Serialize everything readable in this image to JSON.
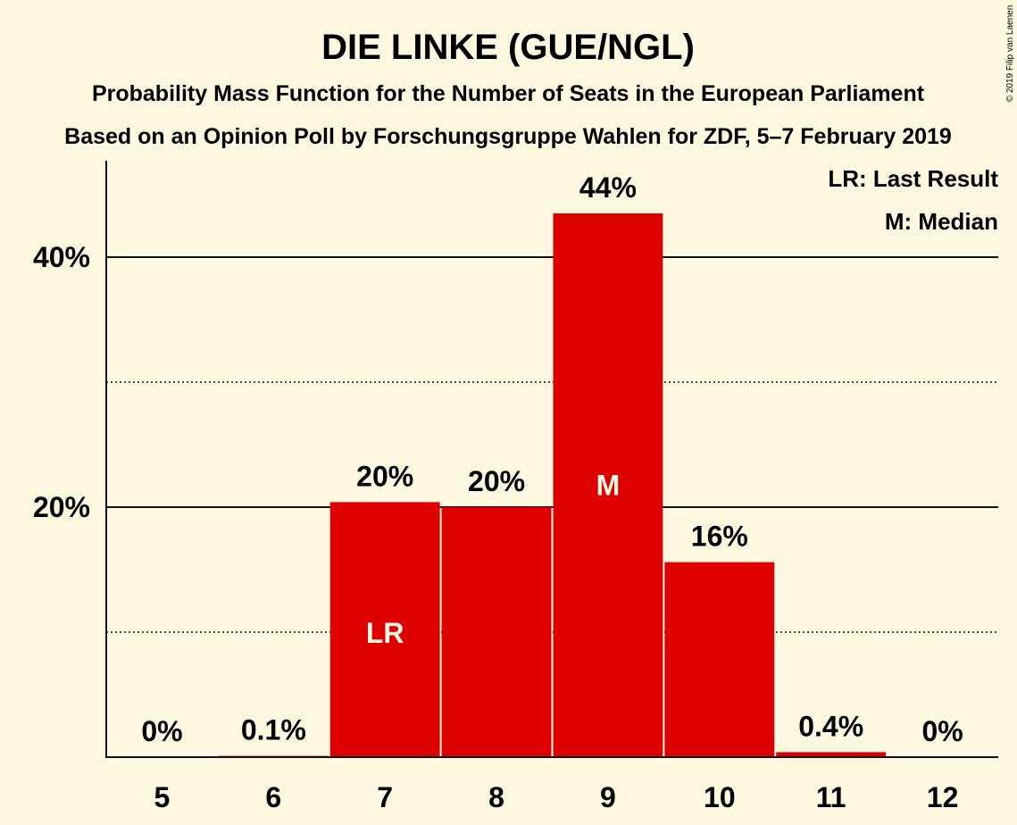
{
  "chart_data": {
    "type": "bar",
    "title": "DIE LINKE (GUE/NGL)",
    "subtitle": "Probability Mass Function for the Number of Seats in the European Parliament",
    "subtitle2": "Based on an Opinion Poll by Forschungsgruppe Wahlen for ZDF, 5–7 February 2019",
    "copyright": "© 2019 Filip van Laenen",
    "categories": [
      "5",
      "6",
      "7",
      "8",
      "9",
      "10",
      "11",
      "12"
    ],
    "values": [
      0,
      0.1,
      20.4,
      20.0,
      43.5,
      15.6,
      0.4,
      0
    ],
    "value_labels": [
      "0%",
      "0.1%",
      "20%",
      "20%",
      "44%",
      "16%",
      "0.4%",
      "0%"
    ],
    "bar_markers": {
      "7": "LR",
      "9": "M"
    },
    "ylim": [
      0,
      46
    ],
    "yticks": [
      {
        "value": 20,
        "label": "20%"
      },
      {
        "value": 40,
        "label": "40%"
      }
    ],
    "minor_gridlines": [
      10,
      30
    ],
    "legend": [
      "LR: Last Result",
      "M: Median"
    ],
    "legend_position": "top-right",
    "bar_color": "#dd0000",
    "background": "#fff8e1"
  }
}
